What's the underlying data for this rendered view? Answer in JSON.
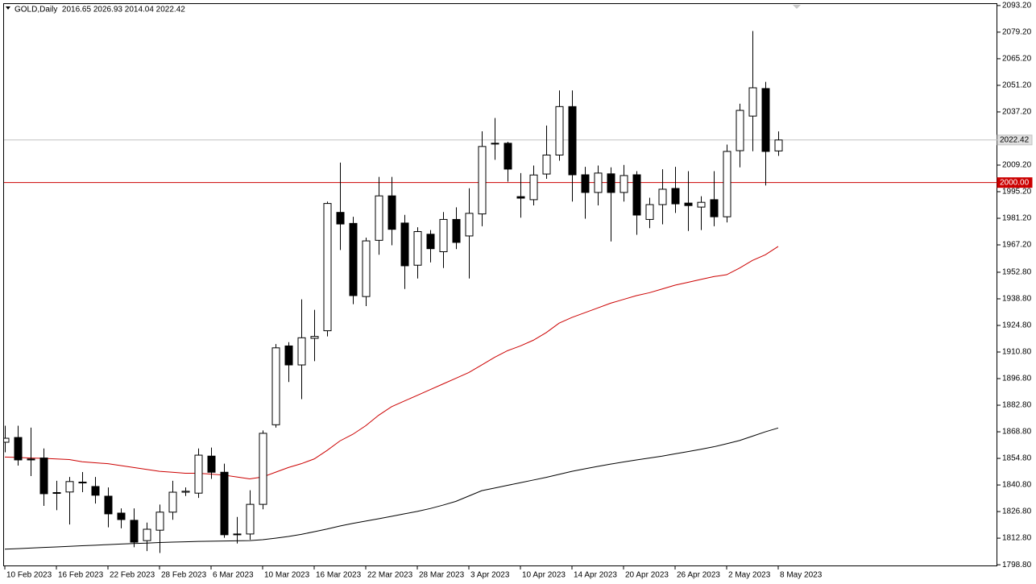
{
  "header": "GOLD,Daily  2016.65 2026.93 2014.04 2022.42",
  "chart_data": {
    "type": "candlestick",
    "categories": [
      "10 Feb 2023",
      null,
      null,
      null,
      "16 Feb 2023",
      null,
      null,
      null,
      "22 Feb 2023",
      null,
      null,
      null,
      "28 Feb 2023",
      null,
      null,
      null,
      "6 Mar 2023",
      null,
      null,
      null,
      "10 Mar 2023",
      null,
      null,
      null,
      "16 Mar 2023",
      null,
      null,
      null,
      "22 Mar 2023",
      null,
      null,
      null,
      "28 Mar 2023",
      null,
      null,
      null,
      "3 Apr 2023",
      null,
      null,
      null,
      "10 Apr 2023",
      null,
      null,
      null,
      "14 Apr 2023",
      null,
      null,
      null,
      "20 Apr 2023",
      null,
      null,
      null,
      "26 Apr 2023",
      null,
      null,
      null,
      "2 May 2023",
      null,
      null,
      null,
      "8 May 2023"
    ],
    "ohlc": {
      "open": [
        1863.3,
        1865.8,
        1854.5,
        1855,
        1836.5,
        1837.1,
        1842.3,
        1840,
        1834.9,
        1826,
        1822.2,
        1811.5,
        1817,
        1826.5,
        1837,
        1836.5,
        1856,
        1847.5,
        1814.6,
        1815,
        1830.6,
        1872.5,
        1914,
        1904,
        1918,
        1922,
        1984.3,
        1978.5,
        1940,
        1969.6,
        1993,
        1978.7,
        1956.5,
        1972.8,
        1963.6,
        1980.6,
        1971.9,
        1983.5,
        2020.5,
        2020.7,
        1992.6,
        1991,
        2004.5,
        2014.5,
        2040,
        2004.1,
        1994.8,
        2004.6,
        1994.8,
        2004.1,
        1980.6,
        1988.4,
        1996.9,
        1989.2,
        1987.1,
        1991,
        1982,
        2016.8,
        2035,
        2049.5,
        2016.65
      ],
      "high": [
        1872,
        1872,
        1871,
        1860,
        1843,
        1845,
        1847.6,
        1845,
        1839.5,
        1828.5,
        1828.5,
        1821,
        1830.5,
        1843,
        1839.5,
        1860,
        1860.5,
        1852,
        1824,
        1838,
        1869.5,
        1915,
        1916,
        1938.5,
        1933,
        1990,
        2010.5,
        1982,
        1971,
        2003,
        2003,
        1983,
        1976.5,
        1975,
        1984.5,
        1987,
        1997,
        2027,
        2034,
        2021.5,
        2005,
        2009,
        2030,
        2048.5,
        2048.5,
        2008.3,
        2009,
        2008,
        2009.3,
        2006,
        1992,
        2007,
        2008.3,
        2006,
        1992.8,
        2006,
        2020,
        2041.5,
        2079.8,
        2053,
        2026.93
      ],
      "low": [
        1858,
        1851,
        1845.5,
        1829.8,
        1827.5,
        1820,
        1837,
        1831,
        1818.5,
        1818,
        1808,
        1806,
        1805,
        1822.5,
        1835,
        1834,
        1844,
        1813,
        1810,
        1812,
        1828,
        1871,
        1895,
        1886,
        1906,
        1919,
        1964.5,
        1936,
        1935,
        1962,
        1967,
        1944,
        1949.5,
        1958,
        1955,
        1965,
        1949.5,
        1977,
        2012,
        2000.5,
        1981.5,
        1988,
        2002,
        2011.5,
        1990,
        1981,
        1988,
        1969,
        1990,
        1972.5,
        1976,
        1978,
        1984,
        1974.5,
        1975,
        1977,
        1979,
        2008,
        2016.5,
        1998.5,
        2014.04
      ],
      "close": [
        1865.4,
        1854,
        1854,
        1836.2,
        1836.8,
        1842.6,
        1842,
        1835.4,
        1825.6,
        1822.6,
        1810.7,
        1817.5,
        1826.5,
        1837,
        1837.5,
        1856.5,
        1847.5,
        1814.6,
        1815,
        1830.6,
        1868,
        1913,
        1904,
        1918.3,
        1919,
        1989,
        1978.2,
        1940.5,
        1969.3,
        1993,
        1975.4,
        1956.2,
        1974.2,
        1965.2,
        1980.6,
        1968.5,
        1983.8,
        2019,
        2020.7,
        2007.1,
        1991.8,
        2004,
        2014.5,
        2040,
        2004.1,
        1994.8,
        2005,
        1994.8,
        2003.7,
        1982.9,
        1988.4,
        1996.5,
        1988.8,
        1987.9,
        1989.6,
        1982,
        2016.4,
        2038,
        2049.9,
        2016.4,
        2022.42
      ]
    },
    "up_color": "#ffffff",
    "down_color": "#000000",
    "lines": [
      {
        "color": "#cc0000",
        "values": [
          1855.5,
          1855.3,
          1855,
          1854.8,
          1854.5,
          1854.2,
          1853,
          1852.5,
          1852,
          1851,
          1850,
          1849,
          1848,
          1847.5,
          1847,
          1847,
          1846.5,
          1846,
          1845,
          1844,
          1845,
          1847.5,
          1850,
          1852,
          1854.5,
          1859,
          1864,
          1867.5,
          1872,
          1877.5,
          1882,
          1885,
          1888,
          1891,
          1894,
          1897,
          1900,
          1904,
          1908,
          1911.5,
          1914,
          1917,
          1921,
          1926,
          1929,
          1931.5,
          1934,
          1936.5,
          1938.5,
          1940.5,
          1942,
          1944,
          1946,
          1947.5,
          1949,
          1950.5,
          1951.5,
          1955,
          1959,
          1962,
          1966.4
        ]
      },
      {
        "color": "#000000",
        "values": [
          1807,
          1807.3,
          1807.6,
          1807.9,
          1808.2,
          1808.5,
          1808.8,
          1809.1,
          1809.4,
          1809.7,
          1810,
          1810.2,
          1810.5,
          1810.7,
          1810.9,
          1811.1,
          1811.2,
          1811.3,
          1811.4,
          1811.5,
          1812,
          1812.8,
          1813.7,
          1814.8,
          1816.2,
          1817.6,
          1819.2,
          1820.6,
          1821.8,
          1823,
          1824.3,
          1825.6,
          1826.9,
          1828.4,
          1830.2,
          1832.2,
          1835,
          1837.8,
          1839.2,
          1840.6,
          1842,
          1843.4,
          1844.8,
          1846.4,
          1848,
          1849.3,
          1850.6,
          1851.8,
          1852.9,
          1854,
          1855,
          1856,
          1857.2,
          1858.4,
          1859.6,
          1860.9,
          1862.5,
          1864.2,
          1866.5,
          1868.8,
          1870.8
        ]
      }
    ],
    "levels": [
      {
        "value": 2022.42,
        "color": "#c0c0c0",
        "label_bg": "#e0e0e0",
        "label_color": "#000000"
      },
      {
        "value": {
          "value": 2000,
          "label": "2000.00"
        },
        "color": "#cc0000",
        "label_bg": "#cc0000",
        "label_color": "#ffffff"
      }
    ],
    "ylim": [
      1798,
      2094
    ],
    "yticks": [
      {
        "value": 2093.2,
        "label": "2093.20"
      },
      {
        "value": 2079.2,
        "label": "2079.20"
      },
      {
        "value": 2065.2,
        "label": "2065.20"
      },
      {
        "value": 2051.2,
        "label": "2051.20"
      },
      {
        "value": 2037.2,
        "label": "2037.20"
      },
      {
        "value": 2009.2,
        "label": "2009.20"
      },
      {
        "value": 1995.2,
        "label": "1995.20"
      },
      {
        "value": 1981.2,
        "label": "1981.20"
      },
      {
        "value": 1967.2,
        "label": "1967.20"
      },
      {
        "value": 1952.8,
        "label": "1952.80"
      },
      {
        "value": 1938.8,
        "label": "1938.80"
      },
      {
        "value": 1924.8,
        "label": "1924.80"
      },
      {
        "value": 1910.8,
        "label": "1910.80"
      },
      {
        "value": 1896.8,
        "label": "1896.80"
      },
      {
        "value": 1882.8,
        "label": "1882.80"
      },
      {
        "value": 1868.8,
        "label": "1868.80"
      },
      {
        "value": 1854.8,
        "label": "1854.80"
      },
      {
        "value": 1840.8,
        "label": "1840.80"
      },
      {
        "value": 1826.8,
        "label": "1826.80"
      },
      {
        "value": 1812.8,
        "label": "1812.80"
      },
      {
        "value": 1798.8,
        "label": "1798.80"
      }
    ]
  }
}
